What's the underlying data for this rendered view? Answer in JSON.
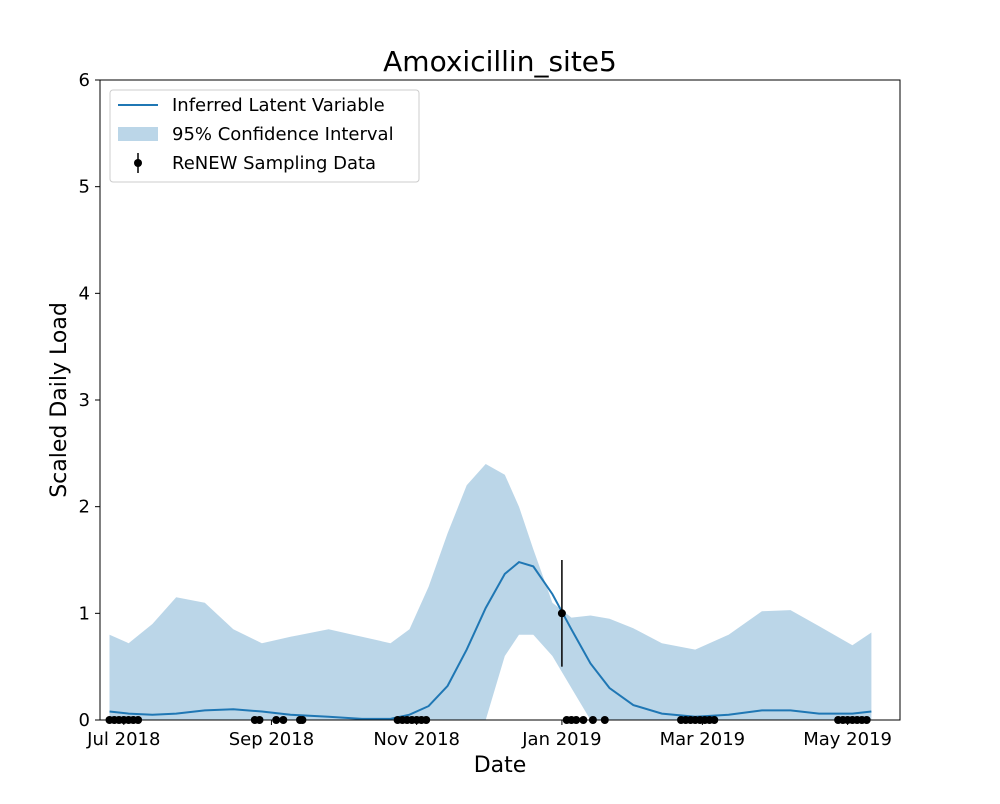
{
  "chart_data": {
    "type": "line",
    "title": "Amoxicillin_site5",
    "xlabel": "Date",
    "ylabel": "Scaled Daily Load",
    "ylim": [
      0,
      6
    ],
    "xlim": [
      "2018-06-21",
      "2019-05-23"
    ],
    "yticks": [
      0,
      1,
      2,
      3,
      4,
      5,
      6
    ],
    "xticks": [
      {
        "date": "2018-07-01",
        "label": "Jul 2018"
      },
      {
        "date": "2018-09-01",
        "label": "Sep 2018"
      },
      {
        "date": "2018-11-01",
        "label": "Nov 2018"
      },
      {
        "date": "2019-01-01",
        "label": "Jan 2019"
      },
      {
        "date": "2019-03-01",
        "label": "Mar 2019"
      },
      {
        "date": "2019-05-01",
        "label": "May 2019"
      }
    ],
    "legend": {
      "placement": "top-left",
      "entries": [
        "Inferred Latent Variable",
        "95% Confidence Interval",
        "ReNEW Sampling Data"
      ]
    },
    "series": [
      {
        "name": "Inferred Latent Variable",
        "kind": "line",
        "color": "#1f77b4",
        "x": [
          "2018-06-25",
          "2018-07-03",
          "2018-07-13",
          "2018-07-23",
          "2018-08-04",
          "2018-08-16",
          "2018-08-28",
          "2018-09-09",
          "2018-09-25",
          "2018-10-09",
          "2018-10-21",
          "2018-10-29",
          "2018-11-06",
          "2018-11-14",
          "2018-11-22",
          "2018-11-30",
          "2018-12-08",
          "2018-12-14",
          "2018-12-20",
          "2018-12-28",
          "2019-01-05",
          "2019-01-13",
          "2019-01-21",
          "2019-01-31",
          "2019-02-12",
          "2019-02-26",
          "2019-03-12",
          "2019-03-26",
          "2019-04-07",
          "2019-04-19",
          "2019-05-03",
          "2019-05-11"
        ],
        "values": [
          0.08,
          0.06,
          0.05,
          0.06,
          0.09,
          0.1,
          0.08,
          0.05,
          0.03,
          0.01,
          0.01,
          0.05,
          0.13,
          0.32,
          0.66,
          1.05,
          1.37,
          1.48,
          1.44,
          1.18,
          0.85,
          0.53,
          0.3,
          0.14,
          0.06,
          0.03,
          0.05,
          0.09,
          0.09,
          0.06,
          0.06,
          0.08
        ]
      },
      {
        "name": "95% Confidence Interval",
        "kind": "band",
        "color": "#1f77b4",
        "opacity": 0.3,
        "x": [
          "2018-06-25",
          "2018-07-03",
          "2018-07-13",
          "2018-07-23",
          "2018-08-04",
          "2018-08-16",
          "2018-08-28",
          "2018-09-09",
          "2018-09-25",
          "2018-10-09",
          "2018-10-21",
          "2018-10-29",
          "2018-11-06",
          "2018-11-14",
          "2018-11-22",
          "2018-11-30",
          "2018-12-08",
          "2018-12-14",
          "2018-12-20",
          "2018-12-28",
          "2019-01-05",
          "2019-01-13",
          "2019-01-21",
          "2019-01-31",
          "2019-02-12",
          "2019-02-26",
          "2019-03-12",
          "2019-03-26",
          "2019-04-07",
          "2019-04-19",
          "2019-05-03",
          "2019-05-11"
        ],
        "lower": [
          0.0,
          0.0,
          0.0,
          0.0,
          0.0,
          0.0,
          0.0,
          0.0,
          0.0,
          0.0,
          0.0,
          0.0,
          0.0,
          0.0,
          0.0,
          0.0,
          0.6,
          0.8,
          0.8,
          0.6,
          0.3,
          0.0,
          0.0,
          0.0,
          0.0,
          0.0,
          0.0,
          0.0,
          0.0,
          0.0,
          0.0,
          0.0
        ],
        "upper": [
          0.8,
          0.72,
          0.9,
          1.15,
          1.1,
          0.85,
          0.72,
          0.78,
          0.85,
          0.78,
          0.72,
          0.85,
          1.25,
          1.75,
          2.2,
          2.4,
          2.3,
          2.0,
          1.6,
          1.1,
          0.96,
          0.98,
          0.95,
          0.86,
          0.72,
          0.66,
          0.8,
          1.02,
          1.03,
          0.88,
          0.7,
          0.82
        ]
      },
      {
        "name": "ReNEW Sampling Data",
        "kind": "scatter",
        "color": "#000000",
        "x": [
          "2018-06-25",
          "2018-06-27",
          "2018-06-29",
          "2018-07-01",
          "2018-07-03",
          "2018-07-05",
          "2018-07-07",
          "2018-08-25",
          "2018-08-27",
          "2018-09-03",
          "2018-09-06",
          "2018-09-13",
          "2018-09-14",
          "2018-10-24",
          "2018-10-26",
          "2018-10-28",
          "2018-10-30",
          "2018-11-01",
          "2018-11-03",
          "2018-11-05",
          "2019-01-01",
          "2019-01-03",
          "2019-01-05",
          "2019-01-07",
          "2019-01-10",
          "2019-01-14",
          "2019-01-19",
          "2019-02-20",
          "2019-02-22",
          "2019-02-24",
          "2019-02-26",
          "2019-02-28",
          "2019-03-02",
          "2019-03-04",
          "2019-03-06",
          "2019-04-27",
          "2019-04-29",
          "2019-05-01",
          "2019-05-03",
          "2019-05-05",
          "2019-05-07",
          "2019-05-09"
        ],
        "values": [
          0,
          0,
          0,
          0,
          0,
          0,
          0,
          0,
          0,
          0,
          0,
          0,
          0,
          0,
          0,
          0,
          0,
          0,
          0,
          0,
          1,
          0,
          0,
          0,
          0,
          0,
          0,
          0,
          0,
          0,
          0,
          0,
          0,
          0,
          0,
          0,
          0,
          0,
          0,
          0,
          0,
          0
        ],
        "error": [
          0,
          0,
          0,
          0,
          0,
          0,
          0,
          0,
          0,
          0,
          0,
          0,
          0,
          0,
          0,
          0,
          0,
          0,
          0,
          0,
          0.5,
          0,
          0,
          0,
          0,
          0,
          0,
          0,
          0,
          0,
          0,
          0,
          0,
          0,
          0,
          0,
          0,
          0,
          0,
          0,
          0,
          0
        ]
      }
    ]
  }
}
